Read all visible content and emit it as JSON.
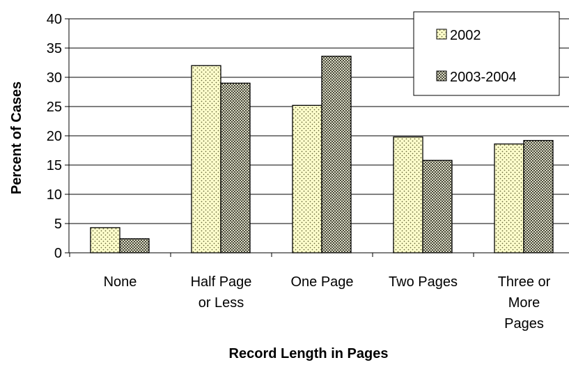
{
  "chart_data": {
    "type": "bar",
    "categories": [
      [
        "None"
      ],
      [
        "Half Page",
        "or Less"
      ],
      [
        "One Page"
      ],
      [
        "Two Pages"
      ],
      [
        "Three or",
        "More",
        "Pages"
      ]
    ],
    "series": [
      {
        "name": "2002",
        "values": [
          4.3,
          32.0,
          25.2,
          19.8,
          18.6
        ],
        "pattern": "dots",
        "color": "#FFFFCC"
      },
      {
        "name": "2003-2004",
        "values": [
          2.4,
          29.0,
          33.6,
          15.8,
          19.2
        ],
        "pattern": "checker",
        "color": "#8C8C76"
      }
    ],
    "xlabel": "Record Length in Pages",
    "ylabel": "Percent of Cases",
    "ylim": [
      0,
      40
    ],
    "yticks": [
      0,
      5,
      10,
      15,
      20,
      25,
      30,
      35,
      40
    ],
    "grid": true,
    "legend_position": "top-right"
  }
}
